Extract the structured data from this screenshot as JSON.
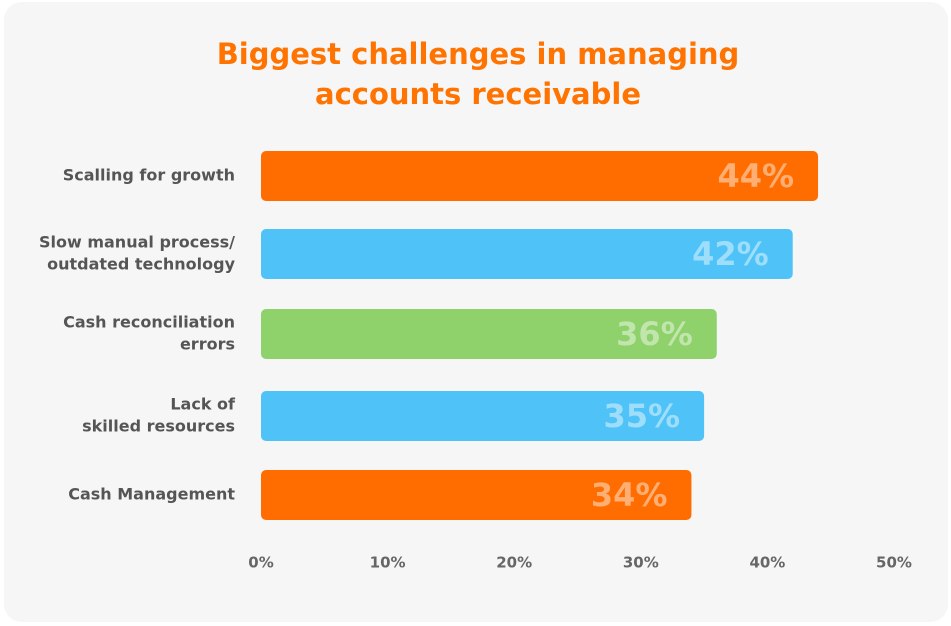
{
  "chart_data": {
    "type": "barh",
    "title": [
      "Biggest challenges in managing",
      "accounts receivable"
    ],
    "categories": [
      [
        "Scalling for growth"
      ],
      [
        "Slow manual process/",
        "outdated technology"
      ],
      [
        "Cash reconciliation",
        "errors"
      ],
      [
        "Lack of",
        "skilled resources"
      ],
      [
        "Cash Management"
      ]
    ],
    "values": [
      44,
      42,
      36,
      35,
      34
    ],
    "value_labels": [
      "44%",
      "42%",
      "36%",
      "35%",
      "34%"
    ],
    "colors": [
      "#ff6d00",
      "#4fc3f7",
      "#8fd16a",
      "#4fc3f7",
      "#ff6d00"
    ],
    "xlim": [
      0,
      50
    ],
    "xticks": [
      {
        "value": 0,
        "label": "0%"
      },
      {
        "value": 10,
        "label": "10%"
      },
      {
        "value": 20,
        "label": "20%"
      },
      {
        "value": 30,
        "label": "30%"
      },
      {
        "value": 40,
        "label": "40%"
      },
      {
        "value": 50,
        "label": "50%"
      }
    ],
    "grid": false
  }
}
